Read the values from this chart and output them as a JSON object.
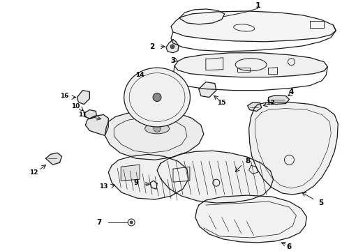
{
  "background_color": "#ffffff",
  "line_color": "#1a1a1a",
  "label_color": "#000000",
  "fig_width": 4.9,
  "fig_height": 3.6,
  "dpi": 100,
  "lw": 0.9
}
